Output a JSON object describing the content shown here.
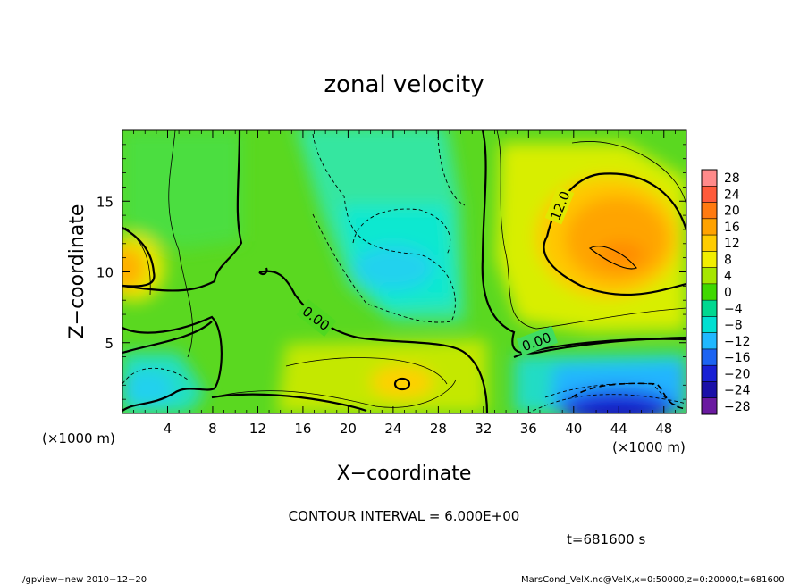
{
  "chart_data": {
    "type": "heatmap",
    "title": "zonal velocity",
    "xlabel": "X−coordinate",
    "ylabel": "Z−coordinate",
    "x_unit_label": "(×1000 m)",
    "y_unit_label": "(×1000 m)",
    "xlim": [
      0,
      50
    ],
    "ylim": [
      0,
      20
    ],
    "x_ticks": [
      "4",
      "8",
      "12",
      "16",
      "20",
      "24",
      "28",
      "32",
      "36",
      "40",
      "44",
      "48"
    ],
    "x_tick_values": [
      4,
      8,
      12,
      16,
      20,
      24,
      28,
      32,
      36,
      40,
      44,
      48
    ],
    "y_ticks": [
      "5",
      "10",
      "15"
    ],
    "y_tick_values": [
      5,
      10,
      15
    ],
    "colorbar": {
      "labels": [
        "28",
        "24",
        "20",
        "16",
        "12",
        "8",
        "4",
        "0",
        "−4",
        "−8",
        "−12",
        "−16",
        "−20",
        "−24",
        "−28"
      ],
      "levels": [
        28,
        24,
        20,
        16,
        12,
        8,
        4,
        0,
        -4,
        -8,
        -12,
        -16,
        -20,
        -24,
        -28
      ],
      "colors": [
        "#ff8a8a",
        "#ff5a3a",
        "#ff7a10",
        "#ffa200",
        "#ffcc00",
        "#f2ee00",
        "#a6e600",
        "#40d800",
        "#00d890",
        "#00e0d2",
        "#20b8ff",
        "#1c64f2",
        "#1820d4",
        "#1a10a8",
        "#6a1aa0"
      ]
    },
    "contour_labels": [
      "0.00",
      "0.00",
      "12.0"
    ],
    "contour_interval_text": "CONTOUR INTERVAL = 6.000E+00",
    "time_text": "t=681600  s",
    "features": [
      {
        "name": "jet maximum",
        "x": 44,
        "z": 11.2,
        "value": 18
      },
      {
        "name": "negative core",
        "x": 43,
        "z": 0.6,
        "value": -20
      },
      {
        "name": "left maximum",
        "x": 0.5,
        "z": 10.5,
        "value": 14
      }
    ],
    "grid": false
  },
  "footer": {
    "left": "./gpview−new   2010−12−20",
    "right": "MarsCond_VelX.nc@VelX,x=0:50000,z=0:20000,t=681600"
  }
}
